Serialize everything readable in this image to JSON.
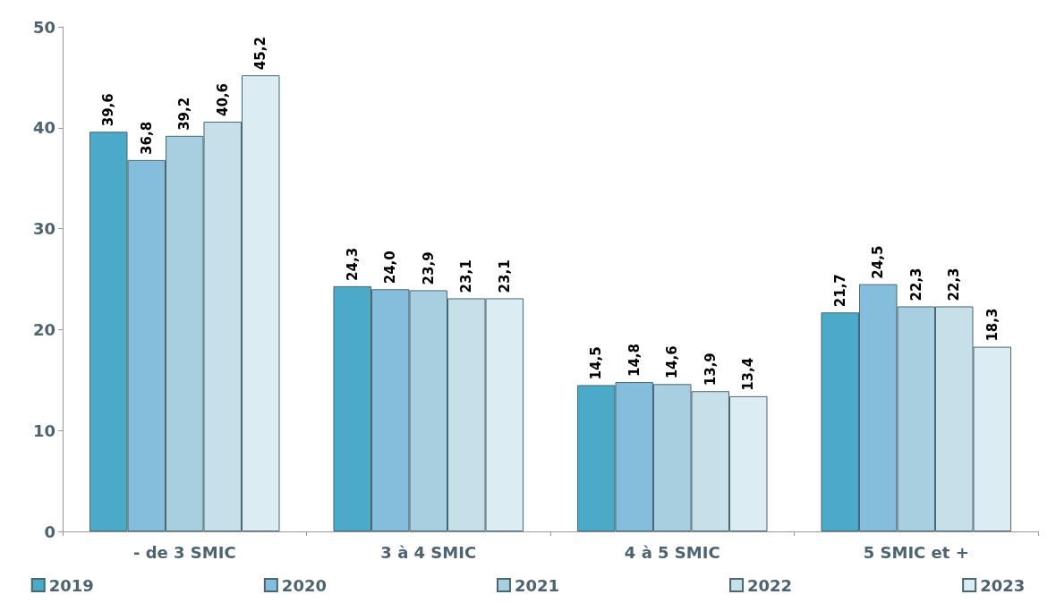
{
  "chart_data": {
    "type": "bar",
    "categories": [
      "- de 3 SMIC",
      "3 à 4 SMIC",
      "4 à 5 SMIC",
      "5 SMIC et +"
    ],
    "series": [
      {
        "name": "2019",
        "color": "#4aaac8",
        "values": [
          39.6,
          24.3,
          14.5,
          21.7
        ],
        "value_labels": [
          "39,6",
          "24,3",
          "14,5",
          "21,7"
        ]
      },
      {
        "name": "2020",
        "color": "#84bedc",
        "values": [
          36.8,
          24.0,
          14.8,
          24.5
        ],
        "value_labels": [
          "36,8",
          "24,0",
          "14,8",
          "24,5"
        ]
      },
      {
        "name": "2021",
        "color": "#a8cfdf",
        "values": [
          39.2,
          23.9,
          14.6,
          22.3
        ],
        "value_labels": [
          "39,2",
          "23,9",
          "14,6",
          "22,3"
        ]
      },
      {
        "name": "2022",
        "color": "#c6dfe8",
        "values": [
          40.6,
          23.1,
          13.9,
          22.3
        ],
        "value_labels": [
          "40,6",
          "23,1",
          "13,9",
          "22,3"
        ]
      },
      {
        "name": "2023",
        "color": "#dcecf3",
        "values": [
          45.2,
          23.1,
          13.4,
          18.3
        ],
        "value_labels": [
          "45,2",
          "23,1",
          "13,4",
          "18,3"
        ]
      }
    ],
    "ylim": [
      0,
      50
    ],
    "yticks": [
      0,
      10,
      20,
      30,
      40,
      50
    ],
    "grid": false,
    "legend": "bottom"
  }
}
